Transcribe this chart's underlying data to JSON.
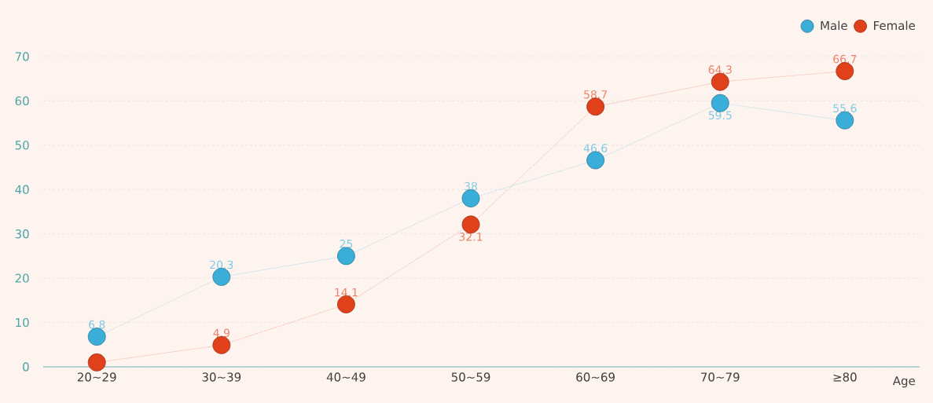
{
  "chart_data": {
    "type": "line",
    "xlabel": "Age",
    "categories": [
      "20~29",
      "30~39",
      "40~49",
      "50~59",
      "60~69",
      "70~79",
      "≥80"
    ],
    "series": [
      {
        "name": "Male",
        "color": "#3aaed8",
        "values": [
          6.8,
          20.3,
          25,
          38,
          46.6,
          59.5,
          55.6
        ],
        "value_labels": [
          "6.8",
          "20.3",
          "25",
          "38",
          "46.6",
          "59.5",
          "55.6"
        ]
      },
      {
        "name": "Female",
        "color": "#e0401a",
        "values": [
          1,
          4.9,
          14.1,
          32.1,
          58.7,
          64.3,
          66.7
        ],
        "value_labels": [
          null,
          "4.9",
          "14.1",
          "32.1",
          "58.7",
          "64.3",
          "66.7"
        ]
      }
    ],
    "ylim": [
      0,
      70
    ],
    "yticks": [
      0,
      10,
      20,
      30,
      40,
      50,
      60,
      70
    ],
    "grid": "y",
    "legend": "top right",
    "marker": "circle",
    "line_style": "dotted"
  }
}
